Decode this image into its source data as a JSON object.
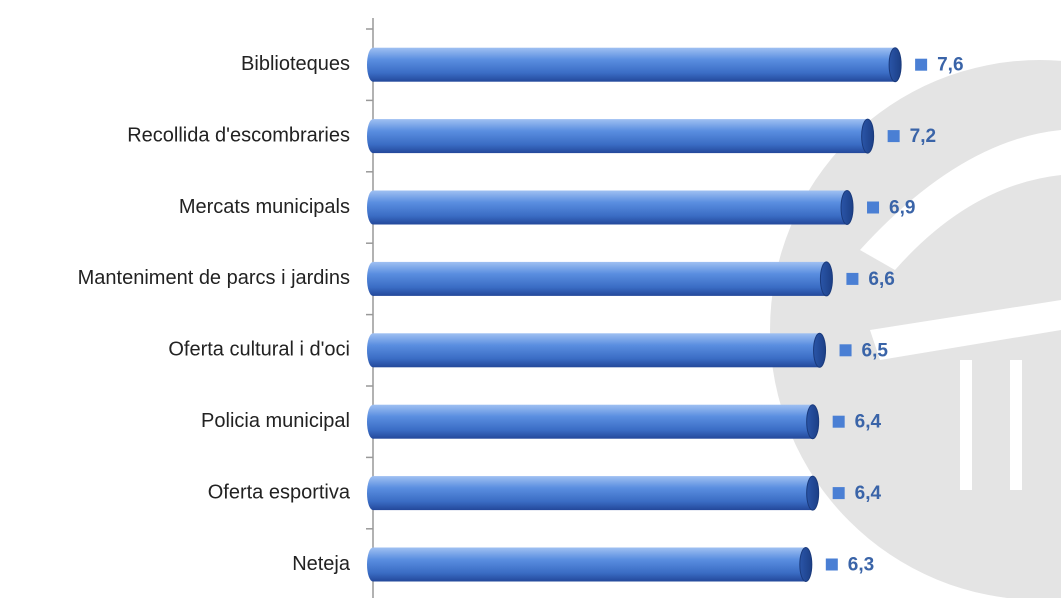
{
  "chart_data": {
    "type": "bar",
    "orientation": "horizontal",
    "categories": [
      "Biblioteques",
      "Recollida d'escombraries",
      "Mercats municipals",
      "Manteniment de parcs i jardins",
      "Oferta cultural i d'oci",
      "Policia municipal",
      "Oferta esportiva",
      "Neteja"
    ],
    "values": [
      7.6,
      7.2,
      6.9,
      6.6,
      6.5,
      6.4,
      6.4,
      6.3
    ],
    "value_labels": [
      "7,6",
      "7,2",
      "6,9",
      "6,6",
      "6,5",
      "6,4",
      "6,4",
      "6,3"
    ],
    "color": "#4a7fd4",
    "label_color": "#3a64a8",
    "xlim": [
      0,
      10
    ]
  }
}
